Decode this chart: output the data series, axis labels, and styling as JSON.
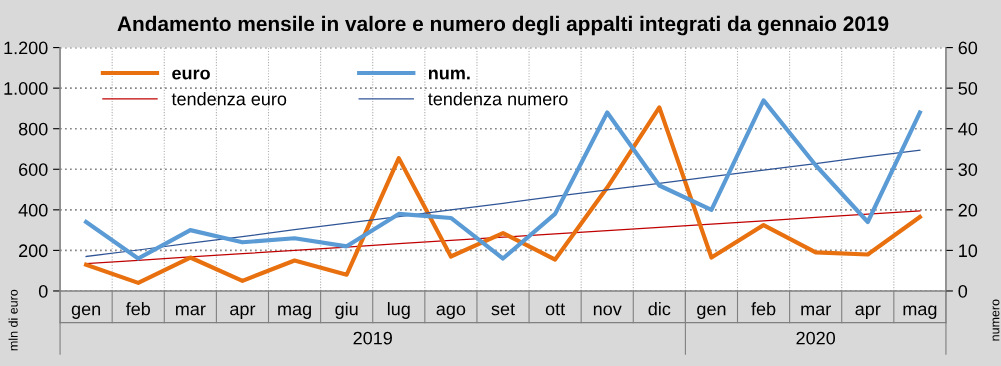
{
  "chart_data": {
    "type": "line",
    "title": "Andamento mensile in valore e numero degli appalti integrati da gennaio 2019",
    "categories": [
      "gen",
      "feb",
      "mar",
      "apr",
      "mag",
      "giu",
      "lug",
      "ago",
      "set",
      "ott",
      "nov",
      "dic",
      "gen",
      "feb",
      "mar",
      "apr",
      "mag"
    ],
    "series": [
      {
        "name": "euro",
        "color": "#e8700f",
        "values": [
          130,
          40,
          165,
          50,
          150,
          80,
          655,
          170,
          285,
          155,
          510,
          905,
          165,
          325,
          190,
          180,
          365
        ]
      },
      {
        "name": "num.",
        "color": "#5b9bd5",
        "axis": "y2",
        "values": [
          17,
          8,
          15,
          12,
          13,
          11,
          19,
          18,
          8,
          19,
          44,
          26,
          20,
          47,
          31,
          17,
          44
        ]
      },
      {
        "name": "tendenza euro",
        "color": "#c00000",
        "values": [
          135,
          151,
          168,
          184,
          200,
          216,
          233,
          249,
          265,
          281,
          298,
          314,
          330,
          346,
          363,
          379,
          395
        ]
      },
      {
        "name": "tendenza numero",
        "color": "#2f5597",
        "axis": "y2",
        "values": [
          8.5,
          10.1,
          11.8,
          13.4,
          15.1,
          16.7,
          18.3,
          20.0,
          21.6,
          23.3,
          24.9,
          26.5,
          28.2,
          29.8,
          31.4,
          33.1,
          34.7
        ]
      }
    ],
    "ylabel": "mln di euro",
    "y2label": "numero",
    "ylim": [
      0,
      1200
    ],
    "yticks": [
      0,
      200,
      400,
      600,
      800,
      {
        "value": 1000,
        "label": "1.000"
      },
      {
        "value": 1200,
        "label": "1.200"
      }
    ],
    "y2lim": [
      0,
      60
    ],
    "y2ticks": [
      0,
      10,
      20,
      30,
      40,
      50,
      60
    ],
    "annotations": [
      "2019",
      "2020"
    ],
    "grid": true,
    "legend": "top left",
    "marker": "none",
    "line_style": "solid"
  }
}
